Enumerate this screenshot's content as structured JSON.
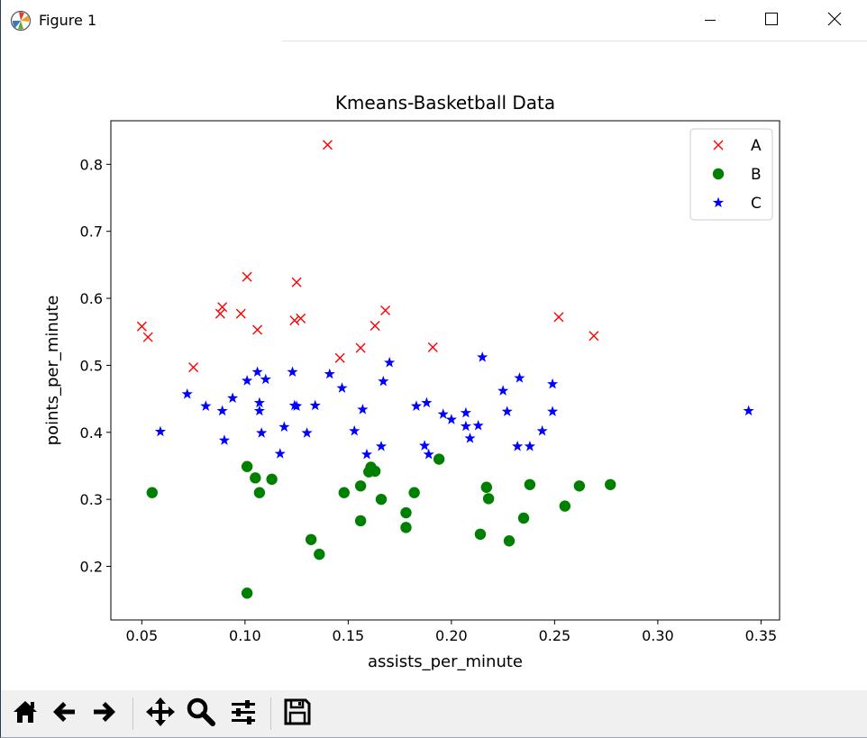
{
  "window": {
    "title": "Figure 1",
    "icons": {
      "app": "matplotlib-icon",
      "minimize": "minimize-icon",
      "maximize": "maximize-icon",
      "close": "close-icon"
    }
  },
  "toolbar": {
    "buttons": [
      {
        "name": "home",
        "icon": "home-icon"
      },
      {
        "name": "back",
        "icon": "arrow-left-icon"
      },
      {
        "name": "forward",
        "icon": "arrow-right-icon"
      },
      {
        "name": "pan",
        "icon": "move-icon"
      },
      {
        "name": "zoom",
        "icon": "magnifier-icon"
      },
      {
        "name": "configure",
        "icon": "sliders-icon"
      },
      {
        "name": "save",
        "icon": "floppy-icon"
      }
    ]
  },
  "chart_data": {
    "type": "scatter",
    "title": "Kmeans-Basketball Data",
    "xlabel": "assists_per_minute",
    "ylabel": "points_per_minute",
    "xlim": [
      0.035,
      0.359
    ],
    "ylim": [
      0.12,
      0.865
    ],
    "xticks": [
      "0.05",
      "0.10",
      "0.15",
      "0.20",
      "0.25",
      "0.30",
      "0.35"
    ],
    "yticks": [
      "0.2",
      "0.3",
      "0.4",
      "0.5",
      "0.6",
      "0.7",
      "0.8"
    ],
    "grid": false,
    "legend_position": "top-right",
    "series": [
      {
        "name": "A",
        "marker": "x",
        "color": "#ff0000",
        "points": [
          [
            0.05,
            0.558
          ],
          [
            0.053,
            0.542
          ],
          [
            0.075,
            0.497
          ],
          [
            0.088,
            0.577
          ],
          [
            0.089,
            0.587
          ],
          [
            0.098,
            0.577
          ],
          [
            0.101,
            0.632
          ],
          [
            0.106,
            0.553
          ],
          [
            0.124,
            0.567
          ],
          [
            0.125,
            0.624
          ],
          [
            0.127,
            0.57
          ],
          [
            0.14,
            0.829
          ],
          [
            0.146,
            0.511
          ],
          [
            0.156,
            0.526
          ],
          [
            0.163,
            0.559
          ],
          [
            0.168,
            0.582
          ],
          [
            0.191,
            0.527
          ],
          [
            0.252,
            0.572
          ],
          [
            0.269,
            0.544
          ]
        ]
      },
      {
        "name": "B",
        "marker": "o",
        "color": "#008000",
        "points": [
          [
            0.055,
            0.31
          ],
          [
            0.101,
            0.349
          ],
          [
            0.101,
            0.16
          ],
          [
            0.105,
            0.332
          ],
          [
            0.107,
            0.31
          ],
          [
            0.113,
            0.33
          ],
          [
            0.132,
            0.24
          ],
          [
            0.136,
            0.218
          ],
          [
            0.148,
            0.31
          ],
          [
            0.156,
            0.32
          ],
          [
            0.156,
            0.268
          ],
          [
            0.16,
            0.341
          ],
          [
            0.161,
            0.348
          ],
          [
            0.163,
            0.342
          ],
          [
            0.166,
            0.3
          ],
          [
            0.178,
            0.28
          ],
          [
            0.178,
            0.258
          ],
          [
            0.182,
            0.31
          ],
          [
            0.194,
            0.36
          ],
          [
            0.214,
            0.248
          ],
          [
            0.217,
            0.318
          ],
          [
            0.218,
            0.301
          ],
          [
            0.228,
            0.238
          ],
          [
            0.235,
            0.272
          ],
          [
            0.238,
            0.322
          ],
          [
            0.255,
            0.29
          ],
          [
            0.262,
            0.32
          ],
          [
            0.277,
            0.322
          ]
        ]
      },
      {
        "name": "C",
        "marker": "*",
        "color": "#0000ff",
        "points": [
          [
            0.059,
            0.401
          ],
          [
            0.072,
            0.457
          ],
          [
            0.081,
            0.439
          ],
          [
            0.089,
            0.432
          ],
          [
            0.09,
            0.388
          ],
          [
            0.094,
            0.451
          ],
          [
            0.101,
            0.477
          ],
          [
            0.106,
            0.49
          ],
          [
            0.107,
            0.432
          ],
          [
            0.107,
            0.444
          ],
          [
            0.108,
            0.399
          ],
          [
            0.11,
            0.479
          ],
          [
            0.117,
            0.368
          ],
          [
            0.119,
            0.408
          ],
          [
            0.123,
            0.49
          ],
          [
            0.124,
            0.44
          ],
          [
            0.125,
            0.439
          ],
          [
            0.13,
            0.399
          ],
          [
            0.134,
            0.44
          ],
          [
            0.141,
            0.487
          ],
          [
            0.147,
            0.466
          ],
          [
            0.153,
            0.402
          ],
          [
            0.157,
            0.434
          ],
          [
            0.159,
            0.367
          ],
          [
            0.166,
            0.379
          ],
          [
            0.167,
            0.476
          ],
          [
            0.17,
            0.504
          ],
          [
            0.183,
            0.439
          ],
          [
            0.187,
            0.38
          ],
          [
            0.188,
            0.444
          ],
          [
            0.189,
            0.367
          ],
          [
            0.196,
            0.427
          ],
          [
            0.2,
            0.419
          ],
          [
            0.207,
            0.429
          ],
          [
            0.207,
            0.409
          ],
          [
            0.209,
            0.391
          ],
          [
            0.213,
            0.41
          ],
          [
            0.215,
            0.512
          ],
          [
            0.225,
            0.462
          ],
          [
            0.227,
            0.431
          ],
          [
            0.232,
            0.379
          ],
          [
            0.233,
            0.481
          ],
          [
            0.238,
            0.379
          ],
          [
            0.244,
            0.402
          ],
          [
            0.249,
            0.431
          ],
          [
            0.249,
            0.472
          ],
          [
            0.344,
            0.432
          ]
        ]
      }
    ]
  }
}
